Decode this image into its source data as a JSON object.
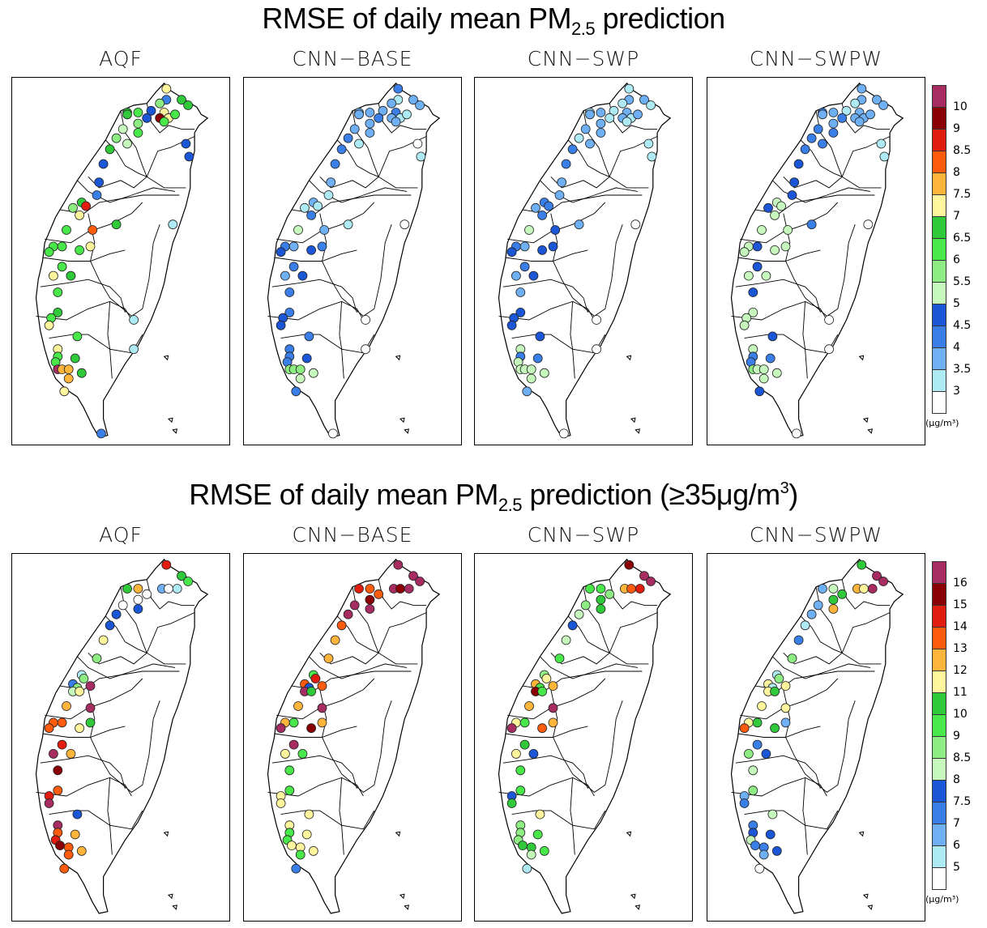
{
  "figure": {
    "rows": [
      {
        "title_main": "RMSE of daily mean PM",
        "title_sub": "2.5",
        "title_rest": " prediction",
        "title_suffix": "",
        "unit": "(μg/m³)",
        "colorbar_labels": [
          "10",
          "9",
          "8.5",
          "8",
          "7.5",
          "7",
          "6.5",
          "6",
          "5.5",
          "5",
          "4.5",
          "4",
          "3.5",
          "3"
        ]
      },
      {
        "title_main": "RMSE of daily mean PM",
        "title_sub": "2.5",
        "title_rest": " prediction (≥35μg/m",
        "title_sup": "3",
        "title_suffix": ")",
        "unit": "(μg/m³)",
        "colorbar_labels": [
          "16",
          "15",
          "14",
          "13",
          "12",
          "11",
          "10",
          "9",
          "8.5",
          "8",
          "7.5",
          "7",
          "6",
          "5"
        ]
      }
    ],
    "panels": [
      "AQF",
      "CNN−BASE",
      "CNN−SWP",
      "CNN−SWPW"
    ],
    "colormap": [
      "#ffffff",
      "#aeeaf4",
      "#6fb0f5",
      "#3a7ee8",
      "#1a56d6",
      "#c6f8bd",
      "#8ded83",
      "#48e84a",
      "#2fc93a",
      "#fff59d",
      "#ffb43c",
      "#ff5b0c",
      "#e11d0f",
      "#8a0005",
      "#a72c62"
    ]
  },
  "chart_data": [
    {
      "type": "map-scatter",
      "title": "RMSE of daily mean PM2.5 prediction",
      "unit": "μg/m³",
      "colorbar_levels": [
        3,
        3.5,
        4,
        4.5,
        5,
        5.5,
        6,
        6.5,
        7,
        7.5,
        8,
        8.5,
        9,
        10
      ],
      "stations": [
        [
          0.71,
          0.03
        ],
        [
          0.71,
          0.06
        ],
        [
          0.68,
          0.07
        ],
        [
          0.78,
          0.06
        ],
        [
          0.81,
          0.075
        ],
        [
          0.64,
          0.09
        ],
        [
          0.7,
          0.095
        ],
        [
          0.68,
          0.11
        ],
        [
          0.72,
          0.11
        ],
        [
          0.75,
          0.1
        ],
        [
          0.7,
          0.12
        ],
        [
          0.53,
          0.095
        ],
        [
          0.58,
          0.095
        ],
        [
          0.62,
          0.11
        ],
        [
          0.58,
          0.125
        ],
        [
          0.53,
          0.1
        ],
        [
          0.51,
          0.14
        ],
        [
          0.58,
          0.15
        ],
        [
          0.48,
          0.165
        ],
        [
          0.53,
          0.18
        ],
        [
          0.45,
          0.195
        ],
        [
          0.8,
          0.18
        ],
        [
          0.815,
          0.215
        ],
        [
          0.42,
          0.235
        ],
        [
          0.4,
          0.285
        ],
        [
          0.39,
          0.32
        ],
        [
          0.32,
          0.34
        ],
        [
          0.34,
          0.35
        ],
        [
          0.28,
          0.355
        ],
        [
          0.31,
          0.375
        ],
        [
          0.48,
          0.4
        ],
        [
          0.74,
          0.4
        ],
        [
          0.25,
          0.415
        ],
        [
          0.37,
          0.415
        ],
        [
          0.19,
          0.46
        ],
        [
          0.17,
          0.475
        ],
        [
          0.23,
          0.46
        ],
        [
          0.31,
          0.47
        ],
        [
          0.36,
          0.46
        ],
        [
          0.23,
          0.515
        ],
        [
          0.19,
          0.54
        ],
        [
          0.27,
          0.54
        ],
        [
          0.21,
          0.585
        ],
        [
          0.21,
          0.64
        ],
        [
          0.18,
          0.655
        ],
        [
          0.17,
          0.675
        ],
        [
          0.56,
          0.66
        ],
        [
          0.3,
          0.705
        ],
        [
          0.56,
          0.74
        ],
        [
          0.21,
          0.74
        ],
        [
          0.21,
          0.76
        ],
        [
          0.2,
          0.775
        ],
        [
          0.21,
          0.795
        ],
        [
          0.23,
          0.795
        ],
        [
          0.29,
          0.765
        ],
        [
          0.26,
          0.795
        ],
        [
          0.32,
          0.805
        ],
        [
          0.26,
          0.82
        ],
        [
          0.24,
          0.855
        ],
        [
          0.41,
          0.97
        ]
      ],
      "values_level_index": {
        "AQF": [
          9,
          3,
          6,
          8,
          8,
          4,
          9,
          13,
          9,
          7,
          7,
          8,
          7,
          4,
          6,
          8,
          5,
          7,
          6,
          5,
          8,
          4,
          4,
          4,
          4,
          3,
          8,
          12,
          6,
          9,
          8,
          1,
          7,
          11,
          7,
          7,
          7,
          7,
          9,
          7,
          9,
          8,
          7,
          8,
          7,
          9,
          1,
          7,
          1,
          9,
          7,
          7,
          14,
          10,
          8,
          10,
          8,
          10,
          9,
          3
        ],
        "CNN−BASE": [
          3,
          1,
          2,
          2,
          2,
          2,
          3,
          2,
          1,
          1,
          2,
          2,
          2,
          3,
          2,
          2,
          2,
          2,
          3,
          1,
          3,
          0,
          1,
          3,
          2,
          1,
          2,
          1,
          1,
          3,
          1,
          0,
          5,
          2,
          3,
          4,
          2,
          4,
          3,
          3,
          2,
          4,
          3,
          3,
          4,
          4,
          0,
          3,
          0,
          3,
          3,
          3,
          6,
          6,
          4,
          6,
          5,
          5,
          3,
          0
        ],
        "CNN−SWP": [
          1,
          2,
          1,
          2,
          1,
          1,
          2,
          2,
          1,
          2,
          1,
          1,
          2,
          1,
          2,
          2,
          2,
          2,
          1,
          2,
          3,
          1,
          1,
          3,
          2,
          2,
          3,
          3,
          2,
          3,
          2,
          0,
          5,
          4,
          3,
          4,
          2,
          4,
          4,
          3,
          2,
          4,
          2,
          4,
          4,
          4,
          0,
          4,
          0,
          5,
          3,
          5,
          5,
          5,
          3,
          5,
          5,
          5,
          2,
          0
        ],
        "CNN−SWPW": [
          2,
          2,
          1,
          2,
          2,
          1,
          2,
          2,
          2,
          2,
          2,
          3,
          2,
          3,
          2,
          2,
          3,
          3,
          3,
          3,
          3,
          1,
          1,
          4,
          4,
          4,
          5,
          5,
          4,
          5,
          3,
          0,
          5,
          5,
          5,
          5,
          4,
          5,
          5,
          4,
          5,
          5,
          4,
          5,
          5,
          5,
          0,
          4,
          0,
          5,
          3,
          3,
          6,
          5,
          3,
          5,
          5,
          5,
          4,
          0
        ]
      }
    },
    {
      "type": "map-scatter",
      "title": "RMSE of daily mean PM2.5 prediction (≥35μg/m³)",
      "unit": "μg/m³",
      "colorbar_levels": [
        5,
        6,
        7,
        7.5,
        8,
        8.5,
        9,
        10,
        11,
        12,
        13,
        14,
        15,
        16
      ],
      "stations": [
        [
          0.71,
          0.03
        ],
        [
          0.78,
          0.06
        ],
        [
          0.81,
          0.075
        ],
        [
          0.53,
          0.095
        ],
        [
          0.58,
          0.095
        ],
        [
          0.69,
          0.095
        ],
        [
          0.72,
          0.095
        ],
        [
          0.76,
          0.095
        ],
        [
          0.62,
          0.11
        ],
        [
          0.58,
          0.125
        ],
        [
          0.51,
          0.14
        ],
        [
          0.58,
          0.15
        ],
        [
          0.48,
          0.165
        ],
        [
          0.45,
          0.195
        ],
        [
          0.42,
          0.235
        ],
        [
          0.39,
          0.285
        ],
        [
          0.32,
          0.33
        ],
        [
          0.33,
          0.34
        ],
        [
          0.28,
          0.355
        ],
        [
          0.3,
          0.365
        ],
        [
          0.36,
          0.36
        ],
        [
          0.28,
          0.375
        ],
        [
          0.31,
          0.375
        ],
        [
          0.25,
          0.415
        ],
        [
          0.36,
          0.42
        ],
        [
          0.19,
          0.46
        ],
        [
          0.17,
          0.475
        ],
        [
          0.23,
          0.46
        ],
        [
          0.31,
          0.475
        ],
        [
          0.36,
          0.46
        ],
        [
          0.23,
          0.52
        ],
        [
          0.19,
          0.545
        ],
        [
          0.27,
          0.545
        ],
        [
          0.21,
          0.59
        ],
        [
          0.21,
          0.645
        ],
        [
          0.17,
          0.66
        ],
        [
          0.17,
          0.68
        ],
        [
          0.3,
          0.71
        ],
        [
          0.21,
          0.74
        ],
        [
          0.21,
          0.76
        ],
        [
          0.2,
          0.78
        ],
        [
          0.22,
          0.795
        ],
        [
          0.29,
          0.765
        ],
        [
          0.26,
          0.8
        ],
        [
          0.32,
          0.81
        ],
        [
          0.26,
          0.82
        ],
        [
          0.24,
          0.858
        ]
      ],
      "values_level_index": {
        "AQF": [
          12,
          8,
          7,
          8,
          10,
          2,
          0,
          1,
          0,
          0,
          0,
          4,
          4,
          4,
          9,
          6,
          1,
          6,
          3,
          6,
          14,
          5,
          9,
          10,
          14,
          11,
          11,
          11,
          9,
          8,
          12,
          14,
          10,
          13,
          11,
          12,
          14,
          4,
          14,
          11,
          12,
          13,
          10,
          11,
          10,
          11,
          11
        ],
        "CNN−BASE": [
          14,
          14,
          14,
          12,
          11,
          14,
          13,
          14,
          11,
          13,
          14,
          14,
          14,
          11,
          10,
          10,
          7,
          12,
          11,
          4,
          11,
          14,
          8,
          10,
          14,
          10,
          14,
          7,
          13,
          10,
          14,
          9,
          7,
          7,
          7,
          9,
          9,
          9,
          9,
          7,
          7,
          9,
          9,
          9,
          9,
          7,
          3
        ],
        "CNN−SWP": [
          13,
          14,
          14,
          7,
          7,
          10,
          11,
          12,
          6,
          8,
          6,
          8,
          5,
          4,
          5,
          7,
          6,
          9,
          10,
          7,
          10,
          13,
          7,
          10,
          14,
          9,
          14,
          7,
          11,
          10,
          8,
          9,
          4,
          7,
          7,
          4,
          8,
          9,
          6,
          6,
          6,
          8,
          7,
          8,
          7,
          5,
          1
        ],
        "CNN−SWPW": [
          8,
          14,
          14,
          2,
          5,
          10,
          9,
          14,
          8,
          8,
          2,
          10,
          2,
          1,
          3,
          6,
          1,
          6,
          9,
          1,
          9,
          9,
          8,
          9,
          9,
          9,
          11,
          8,
          8,
          2,
          3,
          6,
          4,
          5,
          6,
          2,
          3,
          5,
          3,
          4,
          5,
          3,
          4,
          3,
          4,
          2,
          0
        ]
      }
    }
  ]
}
